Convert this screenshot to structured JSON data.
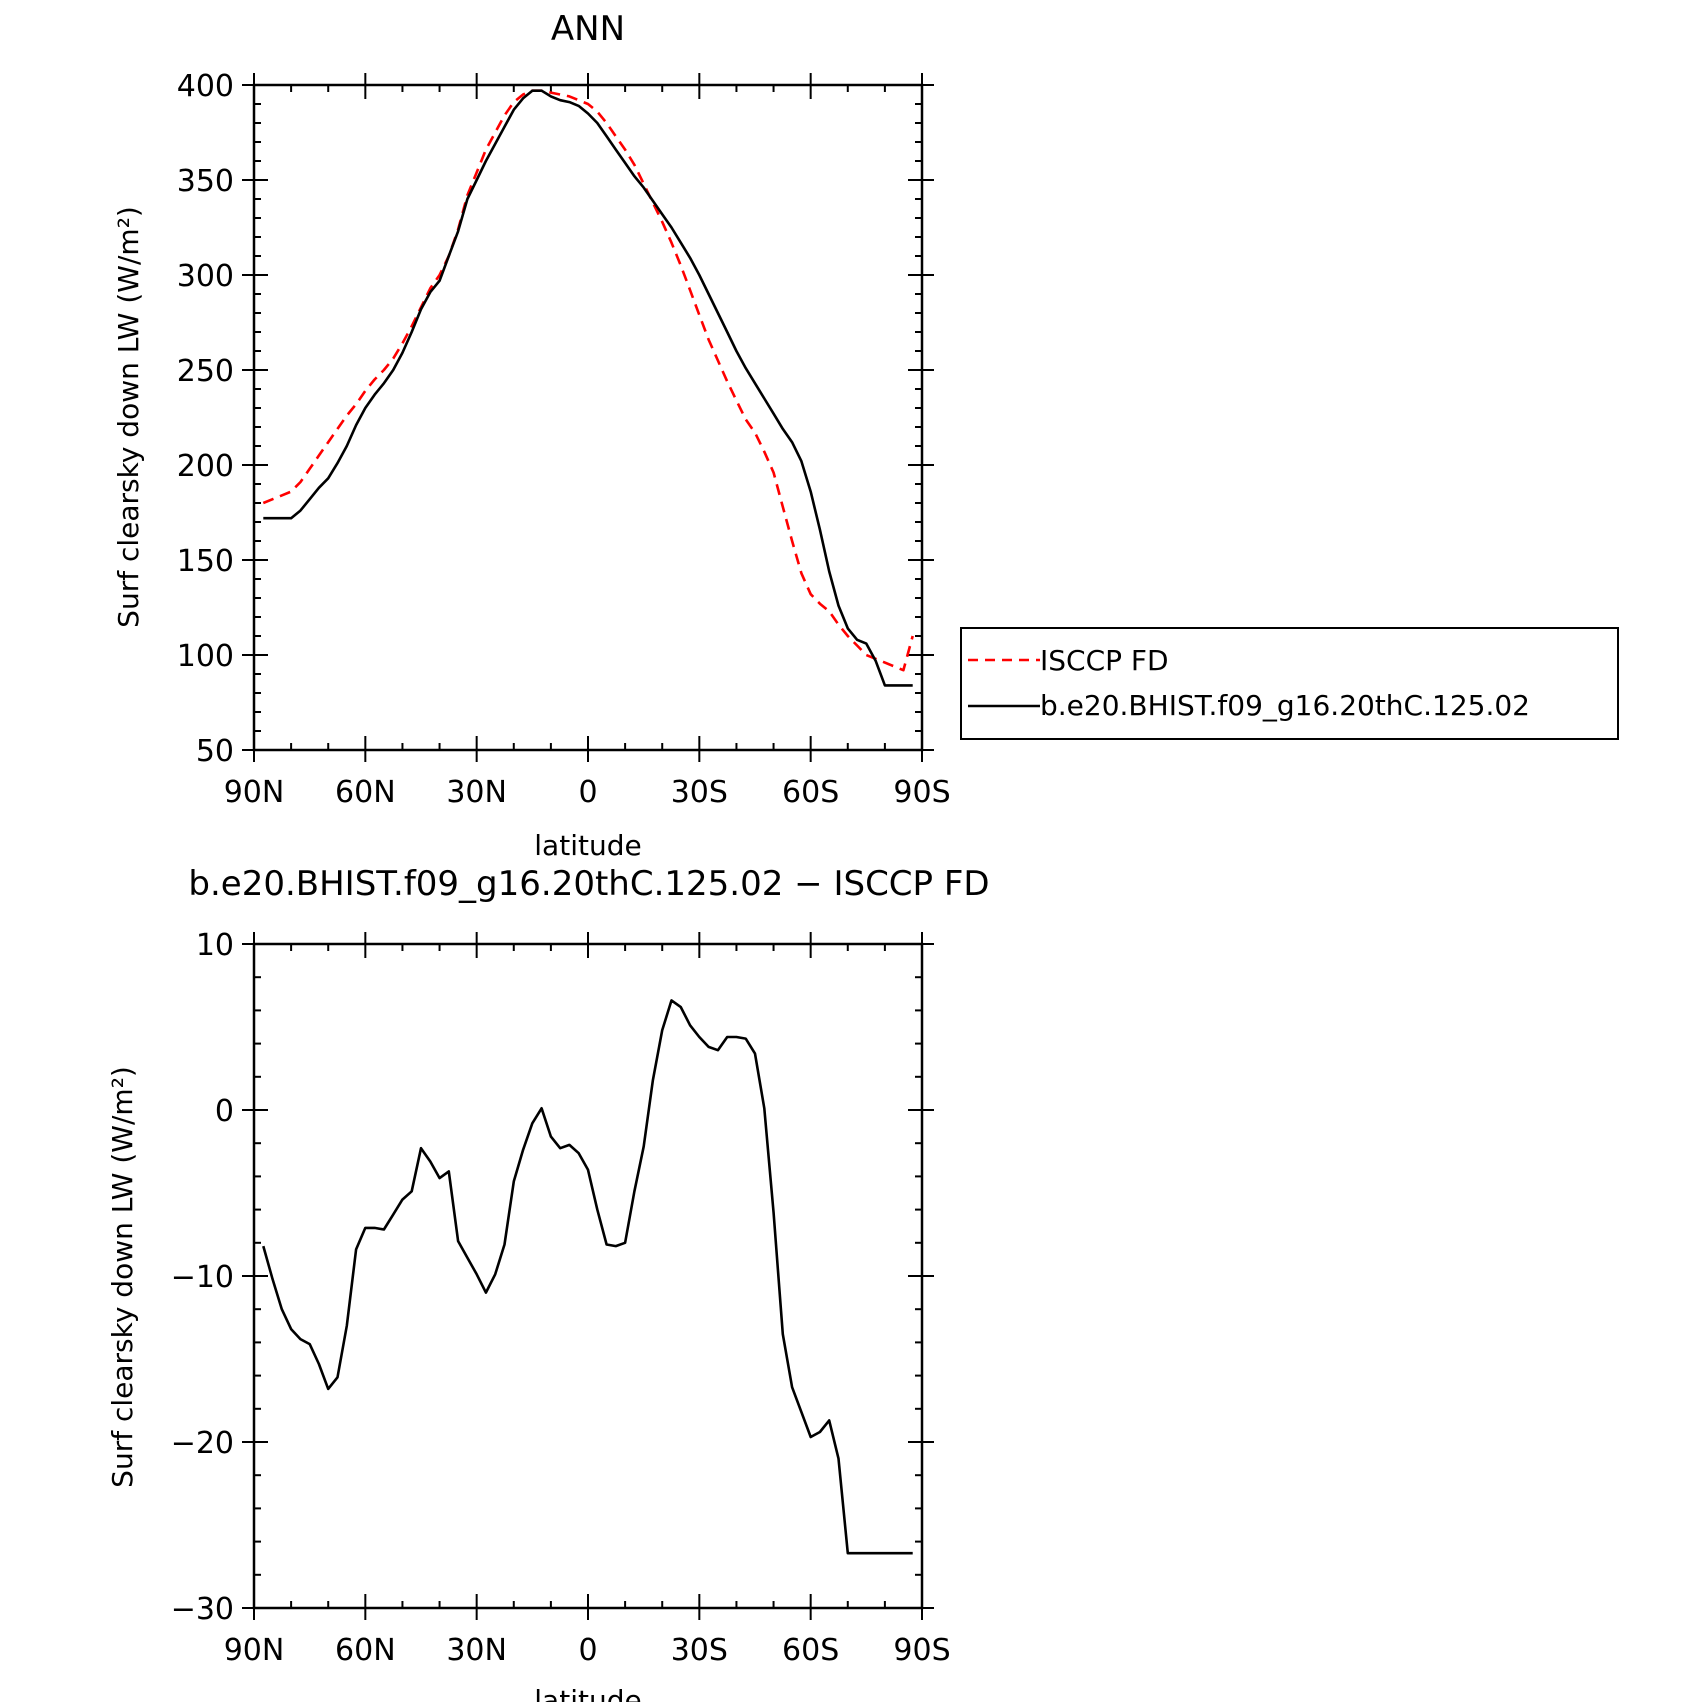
{
  "chart_data": [
    {
      "type": "line",
      "title": "ANN",
      "xlabel": "latitude",
      "ylabel": "Surf clearsky down LW (W/m²)",
      "xlim": [
        90,
        -90
      ],
      "ylim": [
        50,
        400
      ],
      "xticks": [
        90,
        60,
        30,
        0,
        -30,
        -60,
        -90
      ],
      "xtick_labels": [
        "90N",
        "60N",
        "30N",
        "0",
        "30S",
        "60S",
        "90S"
      ],
      "yticks": [
        50,
        100,
        150,
        200,
        250,
        300,
        350,
        400
      ],
      "ytick_labels": [
        "50",
        "100",
        "150",
        "200",
        "250",
        "300",
        "350",
        "400"
      ],
      "legend_position": "right",
      "series": [
        {
          "name": "ISCCP FD",
          "color": "#ff0000",
          "dash": "dashed",
          "x": [
            87.5,
            85,
            82.5,
            80,
            77.5,
            75,
            72.5,
            70,
            67.5,
            65,
            62.5,
            60,
            57.5,
            55,
            52.5,
            50,
            47.5,
            45,
            42.5,
            40,
            37.5,
            35,
            32.5,
            30,
            27.5,
            25,
            22.5,
            20,
            17.5,
            15,
            12.5,
            10,
            7.5,
            5,
            2.5,
            0,
            -2.5,
            -5,
            -7.5,
            -10,
            -12.5,
            -15,
            -17.5,
            -20,
            -22.5,
            -25,
            -27.5,
            -30,
            -32.5,
            -35,
            -37.5,
            -40,
            -42.5,
            -45,
            -47.5,
            -50,
            -52.5,
            -55,
            -57.5,
            -60,
            -62.5,
            -65,
            -67.5,
            -70,
            -72.5,
            -75,
            -77.5,
            -80,
            -82.5,
            -85,
            -87.5
          ],
          "y": [
            180,
            182,
            184,
            186,
            191,
            198,
            205,
            212,
            219,
            226,
            232,
            239,
            245,
            250,
            256,
            264,
            273,
            283,
            293,
            300,
            310,
            324,
            342,
            354,
            366,
            375,
            384,
            391,
            395,
            397,
            397,
            396,
            395,
            394,
            392,
            390,
            386,
            380,
            373,
            366,
            358,
            348,
            338,
            328,
            317,
            305,
            292,
            279,
            266,
            255,
            244,
            234,
            224,
            217,
            207,
            196,
            178,
            160,
            143,
            132,
            127,
            123,
            116,
            110,
            105,
            100,
            98,
            96,
            94,
            92,
            110
          ]
        },
        {
          "name": "b.e20.BHIST.f09_g16.20thC.125.02",
          "color": "#000000",
          "dash": "solid",
          "x": [
            87.5,
            85,
            82.5,
            80,
            77.5,
            75,
            72.5,
            70,
            67.5,
            65,
            62.5,
            60,
            57.5,
            55,
            52.5,
            50,
            47.5,
            45,
            42.5,
            40,
            37.5,
            35,
            32.5,
            30,
            27.5,
            25,
            22.5,
            20,
            17.5,
            15,
            12.5,
            10,
            7.5,
            5,
            2.5,
            0,
            -2.5,
            -5,
            -7.5,
            -10,
            -12.5,
            -15,
            -17.5,
            -20,
            -22.5,
            -25,
            -27.5,
            -30,
            -32.5,
            -35,
            -37.5,
            -40,
            -42.5,
            -45,
            -47.5,
            -50,
            -52.5,
            -55,
            -57.5,
            -60,
            -62.5,
            -65,
            -67.5,
            -70,
            -72.5,
            -75,
            -77.5,
            -80,
            -82.5,
            -85,
            -87.5
          ],
          "y": [
            172,
            172,
            172,
            172,
            176,
            182,
            188,
            193,
            201,
            210,
            221,
            230,
            237,
            243,
            250,
            259,
            270,
            282,
            291,
            297,
            310,
            323,
            340,
            350,
            360,
            369,
            378,
            387,
            393,
            397,
            397,
            394,
            392,
            391,
            389,
            385,
            380,
            373,
            366,
            359,
            352,
            346,
            339,
            332,
            325,
            317,
            309,
            300,
            290,
            280,
            270,
            260,
            251,
            243,
            235,
            227,
            219,
            212,
            202,
            186,
            166,
            144,
            126,
            114,
            108,
            106,
            97,
            84,
            84,
            84,
            84
          ]
        }
      ]
    },
    {
      "type": "line",
      "title": "b.e20.BHIST.f09_g16.20thC.125.02 − ISCCP FD",
      "xlabel": "latitude",
      "ylabel": "Surf clearsky down LW (W/m²)",
      "xlim": [
        90,
        -90
      ],
      "ylim": [
        -30,
        10
      ],
      "xticks": [
        90,
        60,
        30,
        0,
        -30,
        -60,
        -90
      ],
      "xtick_labels": [
        "90N",
        "60N",
        "30N",
        "0",
        "30S",
        "60S",
        "90S"
      ],
      "yticks": [
        -30,
        -20,
        -10,
        0,
        10
      ],
      "ytick_labels": [
        "−30",
        "−20",
        "−10",
        "0",
        "10"
      ],
      "series": [
        {
          "color": "#000000",
          "dash": "solid",
          "x": [
            87.5,
            85,
            82.5,
            80,
            77.5,
            75,
            72.5,
            70,
            67.5,
            65,
            62.5,
            60,
            57.5,
            55,
            52.5,
            50,
            47.5,
            45,
            42.5,
            40,
            37.5,
            35,
            32.5,
            30,
            27.5,
            25,
            22.5,
            20,
            17.5,
            15,
            12.5,
            10,
            7.5,
            5,
            2.5,
            0,
            -2.5,
            -5,
            -7.5,
            -10,
            -12.5,
            -15,
            -17.5,
            -20,
            -22.5,
            -25,
            -27.5,
            -30,
            -32.5,
            -35,
            -37.5,
            -40,
            -42.5,
            -45,
            -47.5,
            -50,
            -52.5,
            -55,
            -57.5,
            -60,
            -62.5,
            -65,
            -67.5,
            -70,
            -72.5,
            -75,
            -77.5,
            -80,
            -82.5,
            -85,
            -87.5
          ],
          "y": [
            -8.2,
            -10.2,
            -12.0,
            -13.2,
            -13.8,
            -14.1,
            -15.3,
            -16.8,
            -16.1,
            -13.0,
            -8.4,
            -7.1,
            -7.1,
            -7.2,
            -6.3,
            -5.4,
            -4.9,
            -2.3,
            -3.1,
            -4.1,
            -3.7,
            -7.9,
            -8.9,
            -9.9,
            -11.0,
            -9.9,
            -8.1,
            -4.3,
            -2.4,
            -0.8,
            0.1,
            -1.6,
            -2.3,
            -2.1,
            -2.6,
            -3.6,
            -6.0,
            -8.1,
            -8.2,
            -8.0,
            -4.9,
            -2.2,
            1.8,
            4.8,
            6.6,
            6.2,
            5.1,
            4.4,
            3.8,
            3.6,
            4.4,
            4.4,
            4.3,
            3.4,
            0.1,
            -6.2,
            -13.5,
            -16.7,
            -18.2,
            -19.7,
            -19.4,
            -18.7,
            -21.0,
            -26.7,
            -26.7,
            -26.7,
            -26.7,
            -26.7,
            -26.7,
            -26.7,
            -26.7
          ]
        }
      ]
    }
  ]
}
